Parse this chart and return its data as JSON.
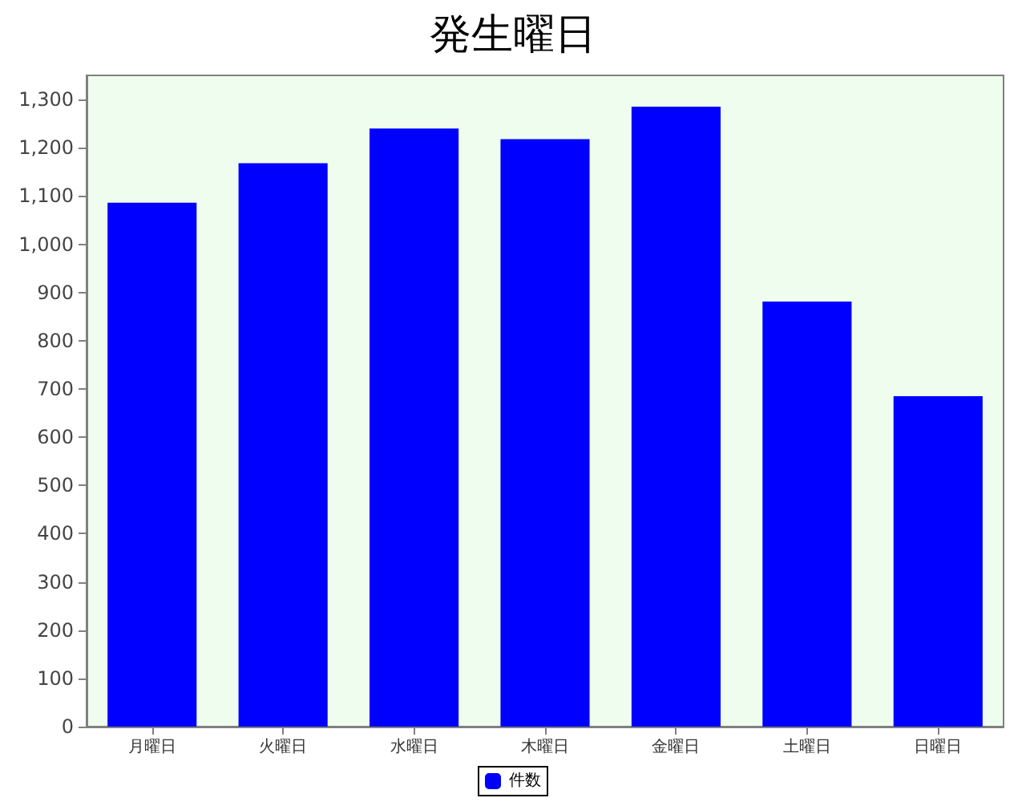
{
  "chart_data": {
    "type": "bar",
    "title": "発生曜日",
    "categories": [
      "月曜日",
      "火曜日",
      "水曜日",
      "木曜日",
      "金曜日",
      "土曜日",
      "日曜日"
    ],
    "series": [
      {
        "name": "件数",
        "color": "#0000ff",
        "values": [
          1086,
          1168,
          1240,
          1218,
          1285,
          881,
          685
        ]
      }
    ],
    "ylim": [
      0,
      1350
    ],
    "yticks": [
      {
        "value": 0,
        "label": "0"
      },
      {
        "value": 100,
        "label": "100"
      },
      {
        "value": 200,
        "label": "200"
      },
      {
        "value": 300,
        "label": "300"
      },
      {
        "value": 400,
        "label": "400"
      },
      {
        "value": 500,
        "label": "500"
      },
      {
        "value": 600,
        "label": "600"
      },
      {
        "value": 700,
        "label": "700"
      },
      {
        "value": 800,
        "label": "800"
      },
      {
        "value": 900,
        "label": "900"
      },
      {
        "value": 1000,
        "label": "1,000"
      },
      {
        "value": 1100,
        "label": "1,100"
      },
      {
        "value": 1200,
        "label": "1,200"
      },
      {
        "value": 1300,
        "label": "1,300"
      }
    ],
    "grid": false,
    "legend": "bottom"
  }
}
